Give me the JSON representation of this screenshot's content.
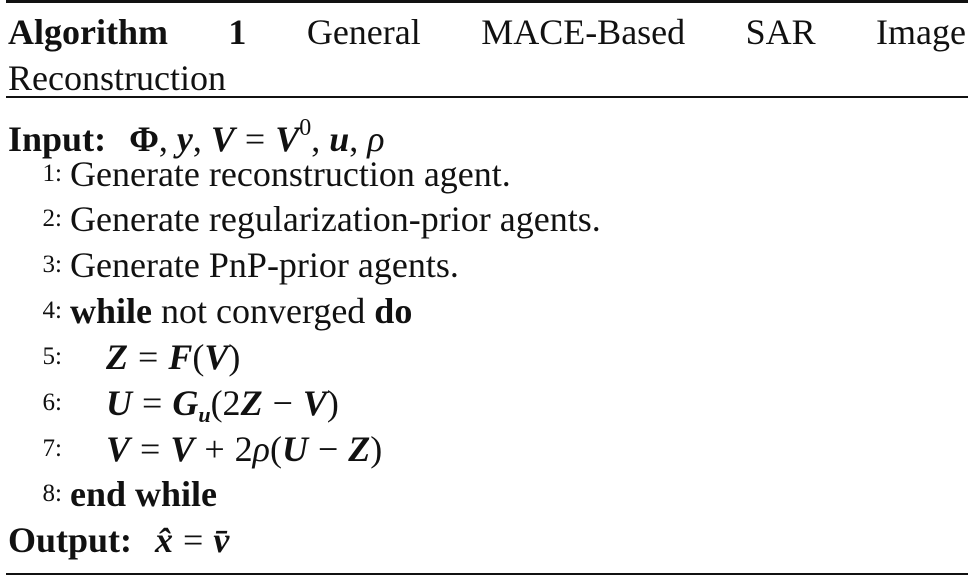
{
  "algorithm": {
    "label": "Algorithm",
    "number": "1",
    "title_words": [
      "General",
      "MACE-Based",
      "SAR",
      "Image"
    ],
    "title_line2": "Reconstruction"
  },
  "input": {
    "label": "Input:",
    "math": "Φ, y, V = V⁰, u, ρ"
  },
  "steps": [
    {
      "num": "1:",
      "text": "Generate reconstruction agent."
    },
    {
      "num": "2:",
      "text": "Generate regularization-prior agents."
    },
    {
      "num": "3:",
      "text": "Generate PnP-prior agents."
    },
    {
      "num": "4:",
      "kw1": "while",
      "text": " not converged ",
      "kw2": "do"
    },
    {
      "num": "5:",
      "math": "Z = F(V)"
    },
    {
      "num": "6:",
      "math": "U = G_u(2Z − V)"
    },
    {
      "num": "7:",
      "math": "V = V + 2ρ(U − Z)"
    },
    {
      "num": "8:",
      "kw1": "end while"
    }
  ],
  "output": {
    "label": "Output:",
    "math": "x̂ = v̄"
  }
}
